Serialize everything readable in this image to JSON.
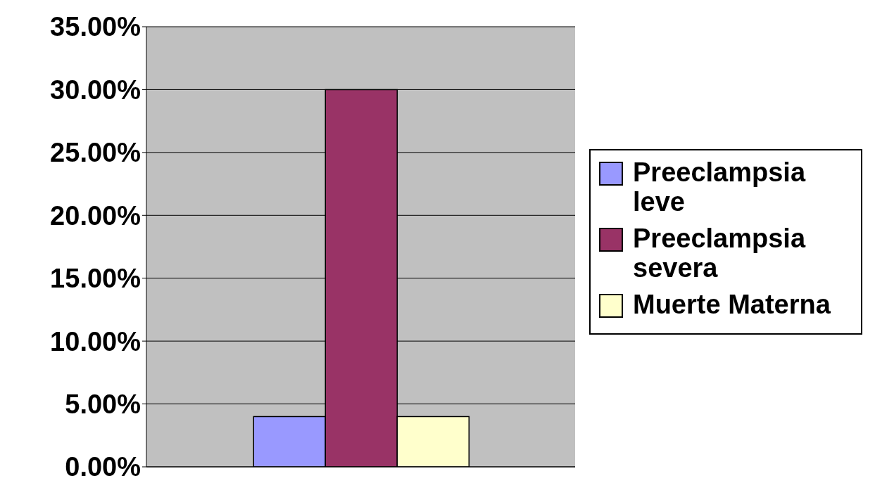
{
  "chart_data": {
    "type": "bar",
    "categories": [
      null
    ],
    "series": [
      {
        "name": "Preeclampsia leve",
        "color": "#9999ff",
        "values": [
          4
        ]
      },
      {
        "name": "Preeclampsia severa",
        "color": "#993366",
        "values": [
          30
        ]
      },
      {
        "name": "Muerte Materna",
        "color": "#ffffcc",
        "values": [
          4
        ]
      }
    ],
    "ylim": [
      0,
      35
    ],
    "yticks": [
      {
        "value": 0,
        "label": "0.00%"
      },
      {
        "value": 5,
        "label": "5.00%"
      },
      {
        "value": 10,
        "label": "10.00%"
      },
      {
        "value": 15,
        "label": "15.00%"
      },
      {
        "value": 20,
        "label": "20.00%"
      },
      {
        "value": 25,
        "label": "25.00%"
      },
      {
        "value": 30,
        "label": "30.00%"
      },
      {
        "value": 35,
        "label": "35.00%"
      }
    ],
    "grid": "y",
    "legend": "right"
  }
}
